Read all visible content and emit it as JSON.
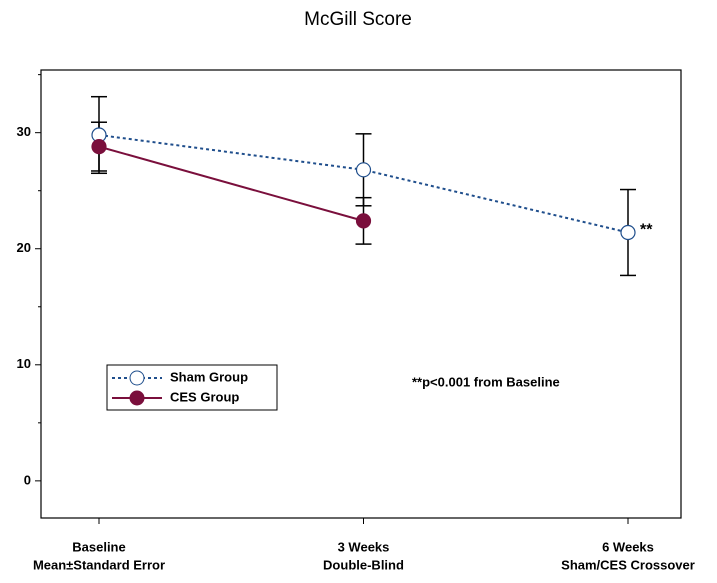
{
  "chart_data": {
    "type": "line",
    "title": "McGill Score",
    "categories": [
      [
        "Baseline",
        "Mean±Standard Error"
      ],
      [
        "3 Weeks",
        "Double-Blind"
      ],
      [
        "6 Weeks",
        "Sham/CES Crossover"
      ]
    ],
    "series": [
      {
        "name": "Sham Group",
        "color": "#1f4e8c",
        "linestyle": "dotted",
        "marker": "open",
        "values": [
          29.8,
          26.8,
          21.4
        ],
        "errors": [
          3.3,
          3.1,
          3.7
        ]
      },
      {
        "name": "CES Group",
        "color": "#7a0f3c",
        "linestyle": "solid",
        "marker": "filled",
        "values": [
          28.8,
          22.4,
          null
        ],
        "errors": [
          2.1,
          2.0,
          null
        ]
      }
    ],
    "ylim": [
      -3.2,
      35.4
    ],
    "yticks": [
      0,
      10,
      20,
      30
    ],
    "yminorticks": [
      5,
      15,
      25,
      35
    ],
    "annotations": [
      "**",
      "**p<0.001 from Baseline"
    ],
    "legend": "lower left"
  }
}
